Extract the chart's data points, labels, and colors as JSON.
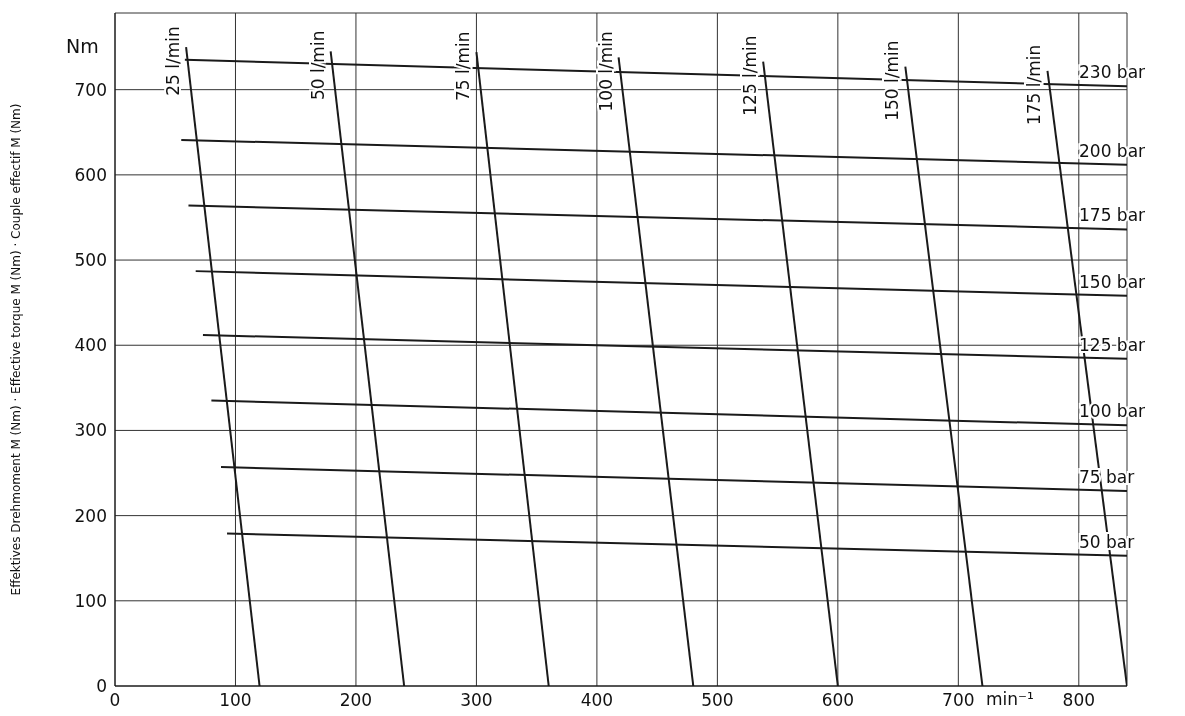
{
  "chart_data": {
    "type": "line",
    "xlabel": "min⁻¹",
    "ylabel": "Effektives Drehmoment M (Nm)  ·  Effective torque M (Nm)  ·  Couple effectif M (Nm)",
    "annotations": [
      "Nm"
    ],
    "xlim": [
      0,
      840
    ],
    "ylim": [
      0,
      790
    ],
    "xticks": [
      0,
      100,
      200,
      300,
      400,
      500,
      600,
      700,
      800
    ],
    "yticks": [
      0,
      100,
      200,
      300,
      400,
      500,
      600,
      700
    ],
    "grid": true,
    "series": [
      {
        "name": "25 l/min",
        "color": "#1a1a1a",
        "x": [
          59,
          120
        ],
        "values": [
          750,
          0
        ]
      },
      {
        "name": "50 l/min",
        "color": "#1a1a1a",
        "x": [
          179,
          240
        ],
        "values": [
          745,
          0
        ]
      },
      {
        "name": "75 l/min",
        "color": "#1a1a1a",
        "x": [
          300,
          360
        ],
        "values": [
          744,
          0
        ]
      },
      {
        "name": "100 l/min",
        "color": "#1a1a1a",
        "x": [
          418,
          480
        ],
        "values": [
          738,
          0
        ]
      },
      {
        "name": "125 l/min",
        "color": "#1a1a1a",
        "x": [
          538,
          600
        ],
        "values": [
          733,
          0
        ]
      },
      {
        "name": "150 l/min",
        "color": "#1a1a1a",
        "x": [
          656,
          720
        ],
        "values": [
          727,
          0
        ]
      },
      {
        "name": "175 l/min",
        "color": "#1a1a1a",
        "x": [
          774,
          840
        ],
        "values": [
          722,
          0
        ]
      },
      {
        "name": "230 bar",
        "color": "#1a1a1a",
        "x": [
          58,
          840
        ],
        "values": [
          735,
          704
        ]
      },
      {
        "name": "200 bar",
        "color": "#1a1a1a",
        "x": [
          55,
          840
        ],
        "values": [
          641,
          612
        ]
      },
      {
        "name": "175 bar",
        "color": "#1a1a1a",
        "x": [
          61,
          840
        ],
        "values": [
          564,
          536
        ]
      },
      {
        "name": "150 bar",
        "color": "#1a1a1a",
        "x": [
          67,
          840
        ],
        "values": [
          487,
          458
        ]
      },
      {
        "name": "125 bar",
        "color": "#1a1a1a",
        "x": [
          73,
          840
        ],
        "values": [
          412,
          384
        ]
      },
      {
        "name": "100 bar",
        "color": "#1a1a1a",
        "x": [
          80,
          840
        ],
        "values": [
          335,
          306
        ]
      },
      {
        "name": "75 bar",
        "color": "#1a1a1a",
        "x": [
          88,
          840
        ],
        "values": [
          257,
          229
        ]
      },
      {
        "name": "50 bar",
        "color": "#1a1a1a",
        "x": [
          93,
          840
        ],
        "values": [
          179,
          153
        ]
      }
    ]
  }
}
